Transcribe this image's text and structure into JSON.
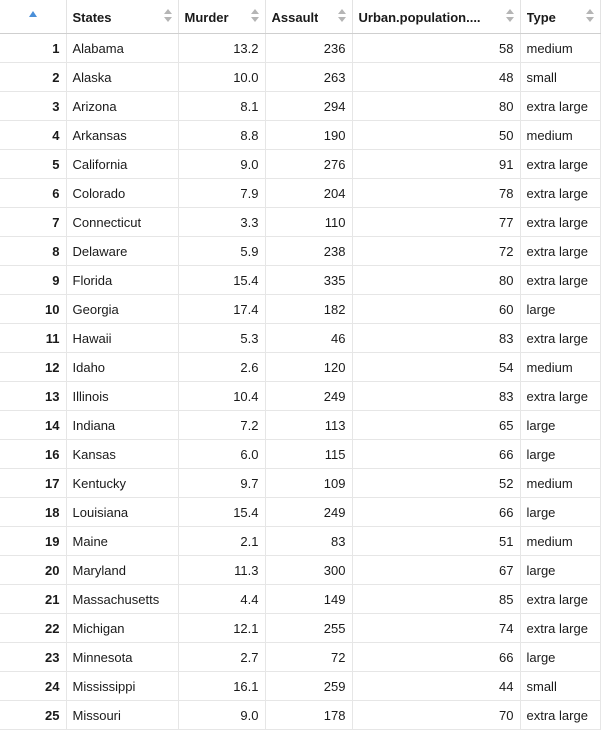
{
  "columns": {
    "states": "States",
    "murder": "Murder",
    "assault": "Assault",
    "urban": "Urban.population....",
    "type": "Type"
  },
  "rows": [
    {
      "idx": "1",
      "state": "Alabama",
      "murder": "13.2",
      "assault": "236",
      "urban": "58",
      "type": "medium"
    },
    {
      "idx": "2",
      "state": "Alaska",
      "murder": "10.0",
      "assault": "263",
      "urban": "48",
      "type": "small"
    },
    {
      "idx": "3",
      "state": "Arizona",
      "murder": "8.1",
      "assault": "294",
      "urban": "80",
      "type": "extra large"
    },
    {
      "idx": "4",
      "state": "Arkansas",
      "murder": "8.8",
      "assault": "190",
      "urban": "50",
      "type": "medium"
    },
    {
      "idx": "5",
      "state": "California",
      "murder": "9.0",
      "assault": "276",
      "urban": "91",
      "type": "extra large"
    },
    {
      "idx": "6",
      "state": "Colorado",
      "murder": "7.9",
      "assault": "204",
      "urban": "78",
      "type": "extra large"
    },
    {
      "idx": "7",
      "state": "Connecticut",
      "murder": "3.3",
      "assault": "110",
      "urban": "77",
      "type": "extra large"
    },
    {
      "idx": "8",
      "state": "Delaware",
      "murder": "5.9",
      "assault": "238",
      "urban": "72",
      "type": "extra large"
    },
    {
      "idx": "9",
      "state": "Florida",
      "murder": "15.4",
      "assault": "335",
      "urban": "80",
      "type": "extra large"
    },
    {
      "idx": "10",
      "state": "Georgia",
      "murder": "17.4",
      "assault": "182",
      "urban": "60",
      "type": "large"
    },
    {
      "idx": "11",
      "state": "Hawaii",
      "murder": "5.3",
      "assault": "46",
      "urban": "83",
      "type": "extra large"
    },
    {
      "idx": "12",
      "state": "Idaho",
      "murder": "2.6",
      "assault": "120",
      "urban": "54",
      "type": "medium"
    },
    {
      "idx": "13",
      "state": "Illinois",
      "murder": "10.4",
      "assault": "249",
      "urban": "83",
      "type": "extra large"
    },
    {
      "idx": "14",
      "state": "Indiana",
      "murder": "7.2",
      "assault": "113",
      "urban": "65",
      "type": "large"
    },
    {
      "idx": "16",
      "state": "Kansas",
      "murder": "6.0",
      "assault": "115",
      "urban": "66",
      "type": "large"
    },
    {
      "idx": "17",
      "state": "Kentucky",
      "murder": "9.7",
      "assault": "109",
      "urban": "52",
      "type": "medium"
    },
    {
      "idx": "18",
      "state": "Louisiana",
      "murder": "15.4",
      "assault": "249",
      "urban": "66",
      "type": "large"
    },
    {
      "idx": "19",
      "state": "Maine",
      "murder": "2.1",
      "assault": "83",
      "urban": "51",
      "type": "medium"
    },
    {
      "idx": "20",
      "state": "Maryland",
      "murder": "11.3",
      "assault": "300",
      "urban": "67",
      "type": "large"
    },
    {
      "idx": "21",
      "state": "Massachusetts",
      "murder": "4.4",
      "assault": "149",
      "urban": "85",
      "type": "extra large"
    },
    {
      "idx": "22",
      "state": "Michigan",
      "murder": "12.1",
      "assault": "255",
      "urban": "74",
      "type": "extra large"
    },
    {
      "idx": "23",
      "state": "Minnesota",
      "murder": "2.7",
      "assault": "72",
      "urban": "66",
      "type": "large"
    },
    {
      "idx": "24",
      "state": "Mississippi",
      "murder": "16.1",
      "assault": "259",
      "urban": "44",
      "type": "small"
    },
    {
      "idx": "25",
      "state": "Missouri",
      "murder": "9.0",
      "assault": "178",
      "urban": "70",
      "type": "extra large"
    }
  ],
  "sort_state": "ascending",
  "colors": {
    "sort_arrow": "#4a8fd8",
    "sort_icon": "#b5b5b5",
    "grid_line": "#e6e6e6"
  }
}
